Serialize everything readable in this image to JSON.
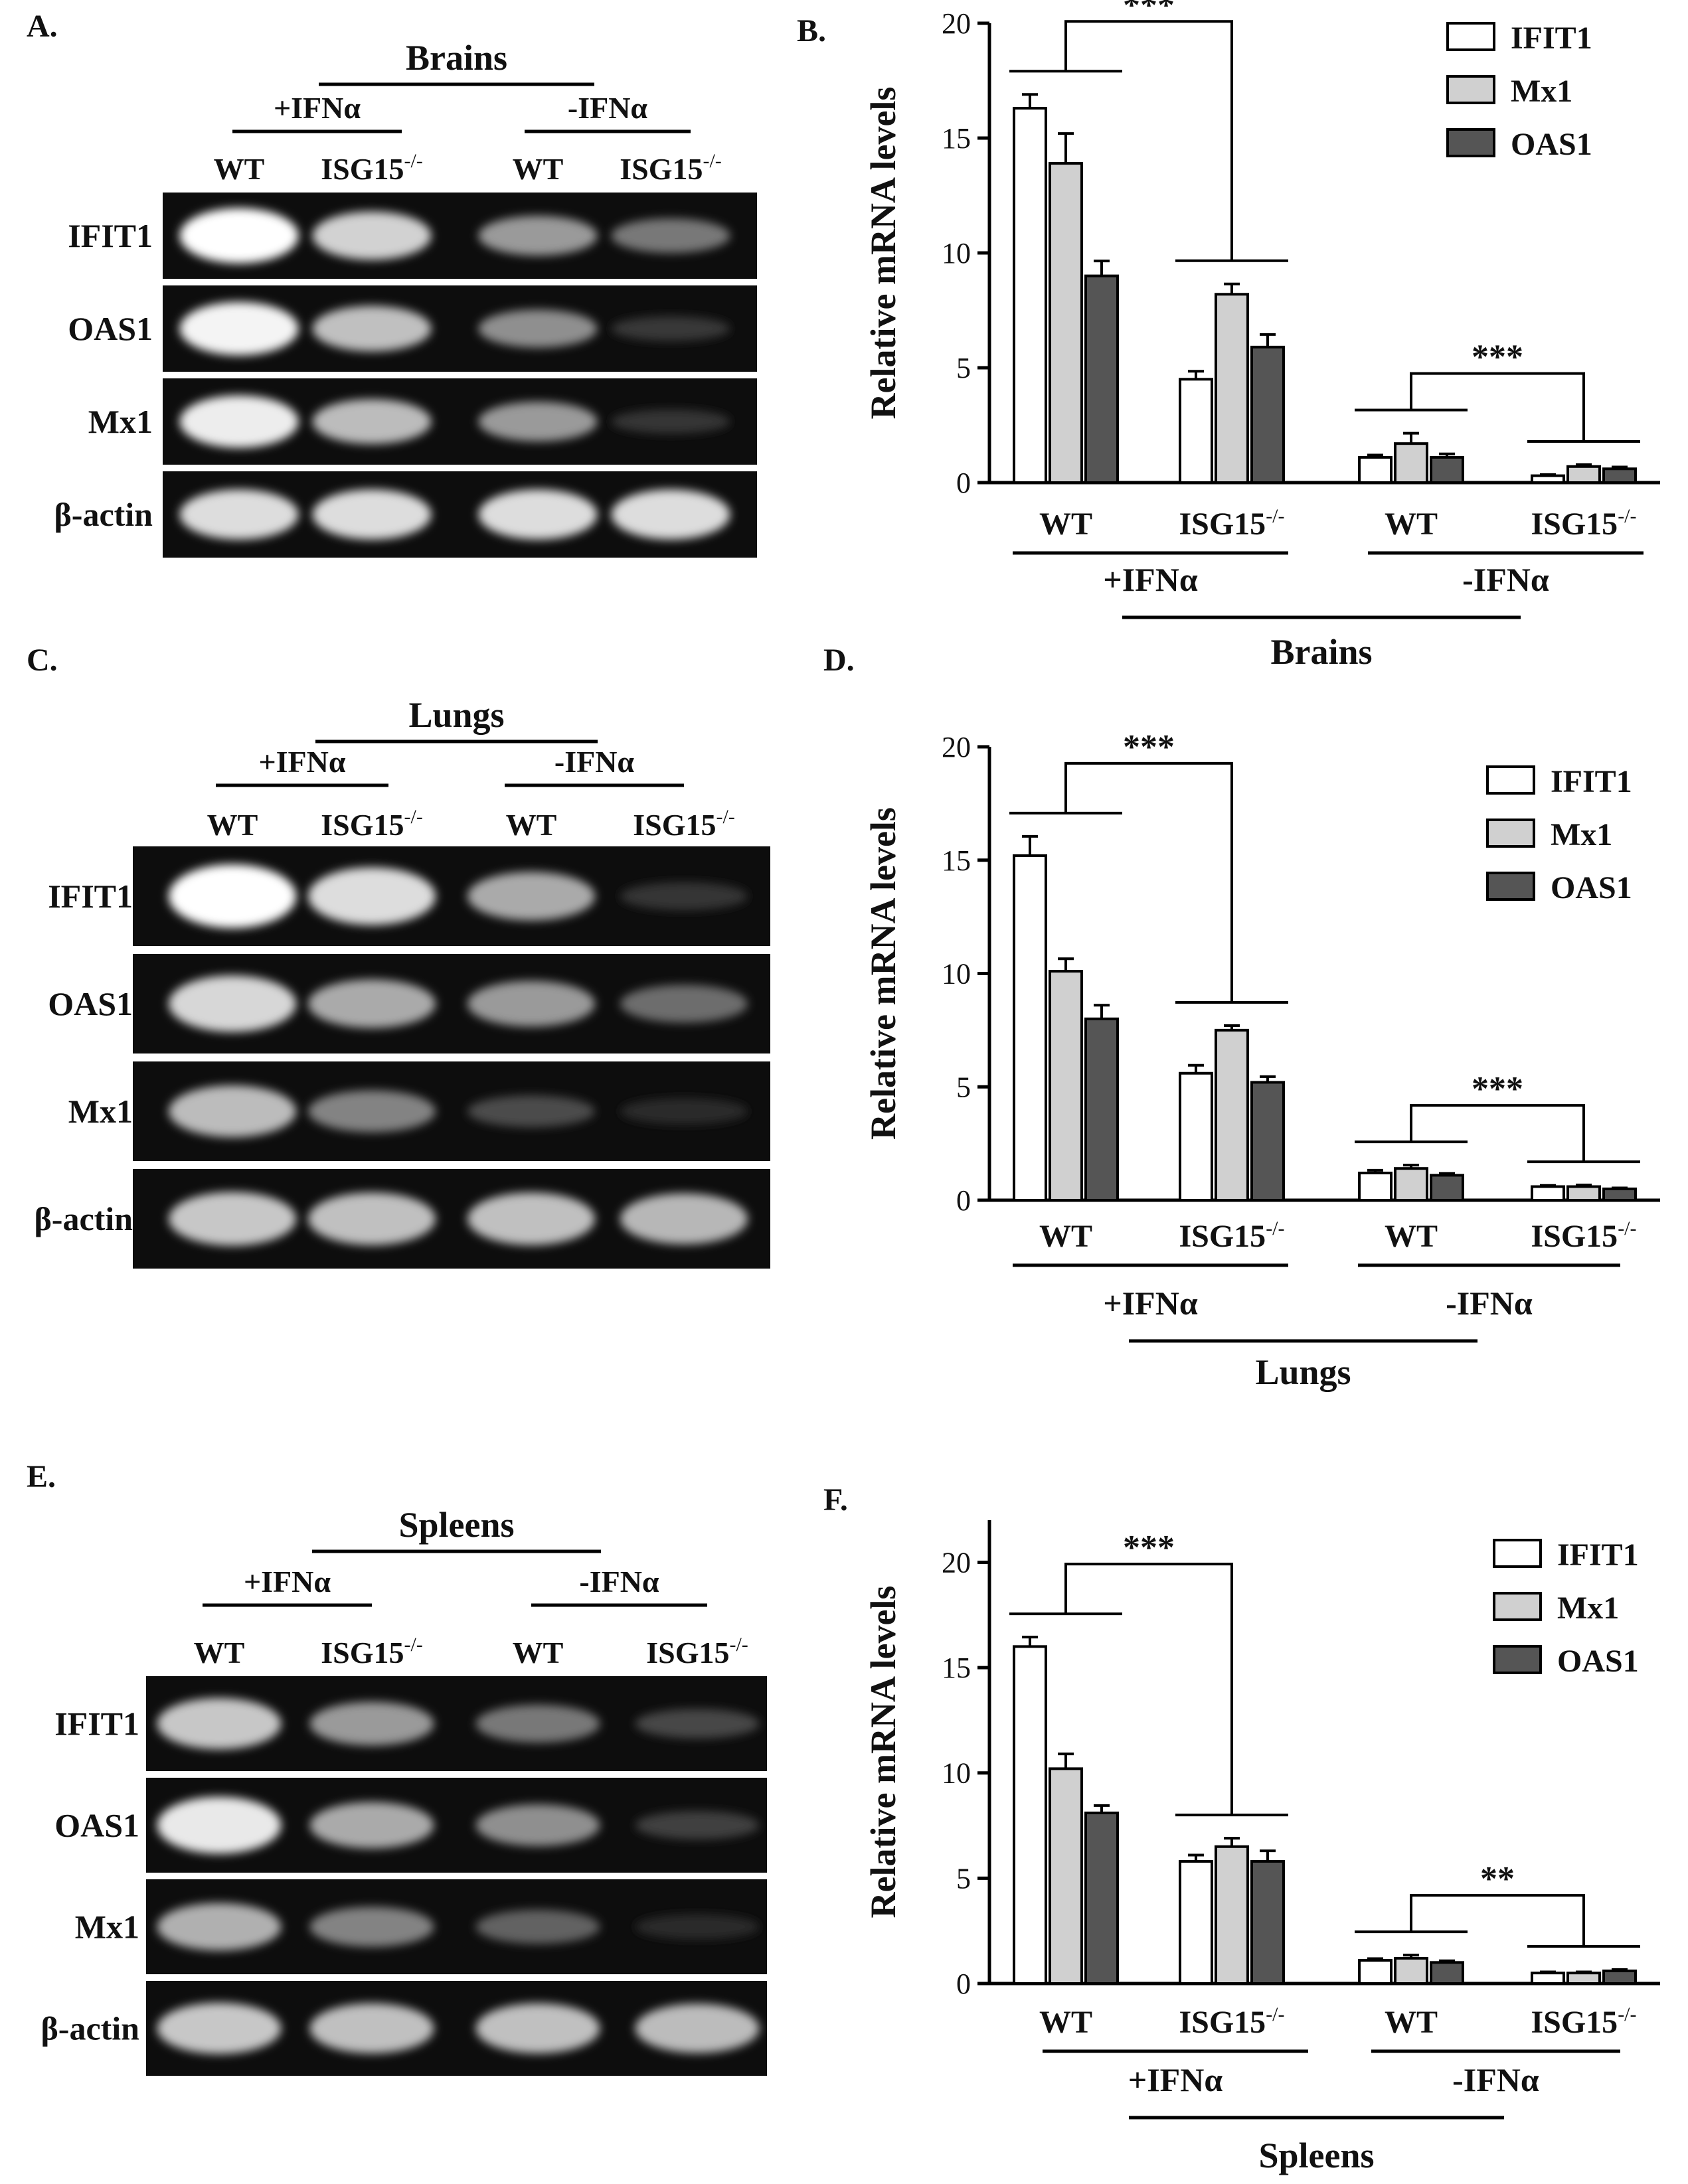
{
  "figure": {
    "panel_letters": [
      "A.",
      "B.",
      "C.",
      "D.",
      "E.",
      "F."
    ]
  },
  "gels": [
    {
      "letter": "A.",
      "tissue": "Brains",
      "groups": [
        "+IFNα",
        "-IFNα"
      ],
      "lanes": [
        "WT",
        "ISG15",
        "WT",
        "ISG15"
      ],
      "lane_superscript": "-/-",
      "genes": [
        "IFIT1",
        "OAS1",
        "Mx1",
        "β-actin"
      ],
      "band_intensity": [
        [
          1.0,
          0.8,
          0.55,
          0.4
        ],
        [
          0.95,
          0.72,
          0.5,
          0.12
        ],
        [
          0.92,
          0.7,
          0.55,
          0.1
        ],
        [
          0.85,
          0.85,
          0.85,
          0.85
        ]
      ]
    },
    {
      "letter": "C.",
      "tissue": "Lungs",
      "groups": [
        "+IFNα",
        "-IFNα"
      ],
      "lanes": [
        "WT",
        "ISG15",
        "WT",
        "ISG15"
      ],
      "lane_superscript": "-/-",
      "genes": [
        "IFIT1",
        "OAS1",
        "Mx1",
        "β-actin"
      ],
      "band_intensity": [
        [
          1.0,
          0.85,
          0.62,
          0.1
        ],
        [
          0.82,
          0.62,
          0.55,
          0.35
        ],
        [
          0.7,
          0.45,
          0.2,
          0.06
        ],
        [
          0.75,
          0.72,
          0.72,
          0.68
        ]
      ]
    },
    {
      "letter": "E.",
      "tissue": "Spleens",
      "groups": [
        "+IFNα",
        "-IFNα"
      ],
      "lanes": [
        "WT",
        "ISG15",
        "WT",
        "ISG15"
      ],
      "lane_superscript": "-/-",
      "genes": [
        "IFIT1",
        "OAS1",
        "Mx1",
        "β-actin"
      ],
      "band_intensity": [
        [
          0.75,
          0.55,
          0.4,
          0.18
        ],
        [
          0.9,
          0.62,
          0.5,
          0.15
        ],
        [
          0.65,
          0.45,
          0.3,
          0.06
        ],
        [
          0.75,
          0.72,
          0.72,
          0.7
        ]
      ]
    }
  ],
  "legend": {
    "entries": [
      {
        "name": "IFIT1",
        "color": "#ffffff"
      },
      {
        "name": "Mx1",
        "color": "#d0d0d0"
      },
      {
        "name": "OAS1",
        "color": "#555555"
      }
    ]
  },
  "chart_data": [
    {
      "type": "bar",
      "letter": "B.",
      "ylabel": "Relative mRNA levels",
      "ylim": [
        0,
        20
      ],
      "yticks": [
        0,
        5,
        10,
        15,
        20
      ],
      "categories": [
        "WT",
        "ISG15",
        "WT",
        "ISG15"
      ],
      "category_superscript": [
        "",
        "-/-",
        "",
        "-/-"
      ],
      "groups": [
        "+IFNα",
        "-IFNα"
      ],
      "organ": "Brains",
      "legend_position": "top-right",
      "series": [
        {
          "name": "IFIT1",
          "values": [
            16.3,
            4.5,
            1.1,
            0.3
          ],
          "errors": [
            0.6,
            0.35,
            0.1,
            0.05
          ]
        },
        {
          "name": "Mx1",
          "values": [
            13.9,
            8.2,
            1.7,
            0.7
          ],
          "errors": [
            1.3,
            0.45,
            0.45,
            0.08
          ]
        },
        {
          "name": "OAS1",
          "values": [
            9.0,
            5.9,
            1.1,
            0.6
          ],
          "errors": [
            0.65,
            0.55,
            0.15,
            0.08
          ]
        }
      ],
      "significance": [
        "***",
        "***"
      ]
    },
    {
      "type": "bar",
      "letter": "D.",
      "ylabel": "Relative mRNA levels",
      "ylim": [
        0,
        20
      ],
      "yticks": [
        0,
        5,
        10,
        15,
        20
      ],
      "categories": [
        "WT",
        "ISG15",
        "WT",
        "ISG15"
      ],
      "category_superscript": [
        "",
        "-/-",
        "",
        "-/-"
      ],
      "groups": [
        "+IFNα",
        "-IFNα"
      ],
      "organ": "Lungs",
      "legend_position": "top-right",
      "series": [
        {
          "name": "IFIT1",
          "values": [
            15.2,
            5.6,
            1.2,
            0.6
          ],
          "errors": [
            0.85,
            0.35,
            0.12,
            0.05
          ]
        },
        {
          "name": "Mx1",
          "values": [
            10.1,
            7.5,
            1.4,
            0.6
          ],
          "errors": [
            0.55,
            0.2,
            0.15,
            0.07
          ]
        },
        {
          "name": "OAS1",
          "values": [
            8.0,
            5.2,
            1.1,
            0.5
          ],
          "errors": [
            0.6,
            0.25,
            0.08,
            0.04
          ]
        }
      ],
      "significance": [
        "***",
        "***"
      ]
    },
    {
      "type": "bar",
      "letter": "F.",
      "ylabel": "Relative mRNA levels",
      "ylim": [
        0,
        22
      ],
      "yticks": [
        0,
        5,
        10,
        15,
        20
      ],
      "categories": [
        "WT",
        "ISG15",
        "WT",
        "ISG15"
      ],
      "category_superscript": [
        "",
        "-/-",
        "",
        "-/-"
      ],
      "groups": [
        "+IFNα",
        "-IFNα"
      ],
      "organ": "Spleens",
      "legend_position": "top-right",
      "series": [
        {
          "name": "IFIT1",
          "values": [
            16.0,
            5.8,
            1.1,
            0.5
          ],
          "errors": [
            0.45,
            0.3,
            0.08,
            0.05
          ]
        },
        {
          "name": "Mx1",
          "values": [
            10.2,
            6.5,
            1.2,
            0.5
          ],
          "errors": [
            0.7,
            0.4,
            0.15,
            0.05
          ]
        },
        {
          "name": "OAS1",
          "values": [
            8.1,
            5.8,
            1.0,
            0.6
          ],
          "errors": [
            0.35,
            0.5,
            0.08,
            0.06
          ]
        }
      ],
      "significance": [
        "***",
        "**"
      ]
    }
  ]
}
